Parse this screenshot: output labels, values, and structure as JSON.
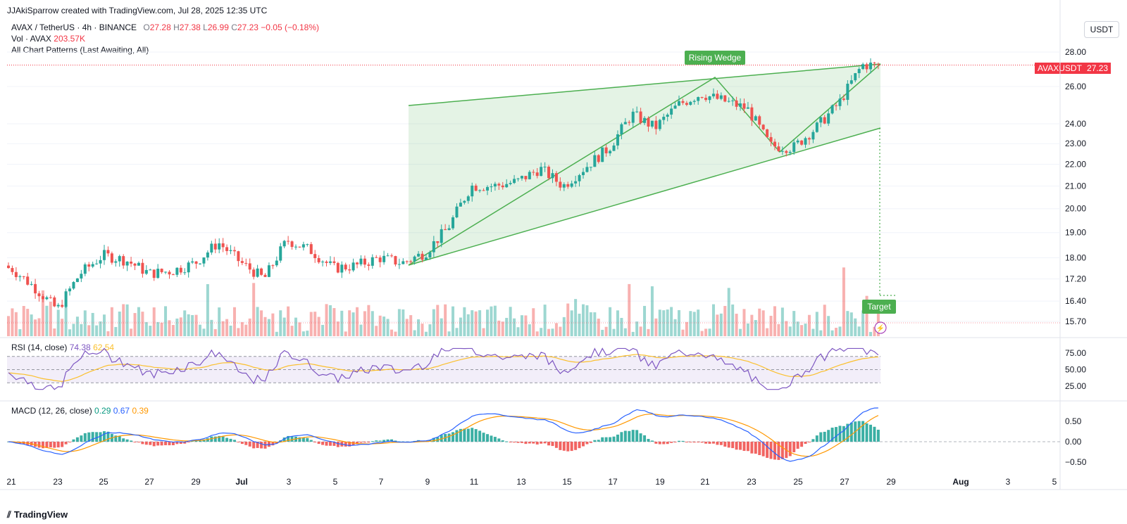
{
  "header": {
    "credit": "JJAkiSparrow created with TradingView.com, Jul 28, 2025 12:35 UTC",
    "symbol": "AVAX / TetherUS · 4h · BINANCE",
    "ohlc": {
      "o_label": "O",
      "o": "27.28",
      "h_label": "H",
      "h": "27.38",
      "l_label": "L",
      "l": "26.99",
      "c_label": "C",
      "c": "27.23",
      "change": "−0.05 (−0.18%)"
    },
    "volume_label": "Vol · AVAX",
    "volume_value": "203.57K",
    "patterns_label": "All Chart Patterns (Last Awaiting, All)"
  },
  "currency": "USDT",
  "price_tag": {
    "symbol": "AVAXUSDT",
    "value": "27.23"
  },
  "rsi": {
    "label": "RSI (14, close)",
    "value": "74.38",
    "ma": "62.54"
  },
  "macd": {
    "label": "MACD (12, 26, close)",
    "hist": "0.29",
    "macd": "0.67",
    "signal": "0.39"
  },
  "footer": {
    "brand": "TradingView"
  },
  "colors": {
    "up": "#26a69a",
    "down": "#ef5350",
    "pattern": "#4caf50",
    "rsi_line": "#7e57c2",
    "rsi_ma": "#fbc02d",
    "macd_line": "#2962ff",
    "signal_line": "#ff9800"
  },
  "chart_data": {
    "type": "candlestick",
    "price_scale": "log",
    "price_ticks": [
      "28.00",
      "26.00",
      "24.00",
      "23.00",
      "22.00",
      "21.00",
      "20.00",
      "19.00",
      "18.00",
      "17.20",
      "16.40",
      "15.70"
    ],
    "rsi_ticks": [
      "75.00",
      "50.00",
      "25.00"
    ],
    "macd_ticks": [
      "0.50",
      "0.00",
      "−0.50"
    ],
    "x_ticks": [
      "21",
      "23",
      "25",
      "27",
      "29",
      "Jul",
      "3",
      "5",
      "7",
      "9",
      "11",
      "13",
      "15",
      "17",
      "19",
      "21",
      "23",
      "25",
      "27",
      "29",
      "Aug",
      "3",
      "5"
    ],
    "pattern": {
      "name": "Rising Wedge",
      "target_label": "Target"
    },
    "close_path": [
      {
        "date": "06-20",
        "close": 17.7
      },
      {
        "date": "06-21",
        "close": 17.6
      },
      {
        "date": "06-22",
        "close": 16.9
      },
      {
        "date": "06-23",
        "close": 16.1
      },
      {
        "date": "06-24",
        "close": 17.4
      },
      {
        "date": "06-25",
        "close": 18.1
      },
      {
        "date": "06-26",
        "close": 17.9
      },
      {
        "date": "06-27",
        "close": 17.4
      },
      {
        "date": "06-28",
        "close": 17.5
      },
      {
        "date": "06-29",
        "close": 17.8
      },
      {
        "date": "06-30",
        "close": 18.6
      },
      {
        "date": "07-01",
        "close": 17.8
      },
      {
        "date": "07-02",
        "close": 17.2
      },
      {
        "date": "07-03",
        "close": 18.7
      },
      {
        "date": "07-04",
        "close": 18.3
      },
      {
        "date": "07-05",
        "close": 17.6
      },
      {
        "date": "07-06",
        "close": 17.7
      },
      {
        "date": "07-07",
        "close": 18.0
      },
      {
        "date": "07-08",
        "close": 17.8
      },
      {
        "date": "07-09",
        "close": 18.2
      },
      {
        "date": "07-10",
        "close": 19.2
      },
      {
        "date": "07-11",
        "close": 21.0
      },
      {
        "date": "07-12",
        "close": 21.0
      },
      {
        "date": "07-13",
        "close": 21.2
      },
      {
        "date": "07-14",
        "close": 21.8
      },
      {
        "date": "07-15",
        "close": 21.0
      },
      {
        "date": "07-16",
        "close": 21.9
      },
      {
        "date": "07-17",
        "close": 22.8
      },
      {
        "date": "07-18",
        "close": 24.5
      },
      {
        "date": "07-19",
        "close": 23.8
      },
      {
        "date": "07-20",
        "close": 25.0
      },
      {
        "date": "07-21",
        "close": 25.6
      },
      {
        "date": "07-22",
        "close": 25.2
      },
      {
        "date": "07-23",
        "close": 24.8
      },
      {
        "date": "07-24",
        "close": 22.9
      },
      {
        "date": "07-25",
        "close": 22.8
      },
      {
        "date": "07-26",
        "close": 23.8
      },
      {
        "date": "07-27",
        "close": 25.1
      },
      {
        "date": "07-28",
        "close": 27.23
      }
    ]
  }
}
